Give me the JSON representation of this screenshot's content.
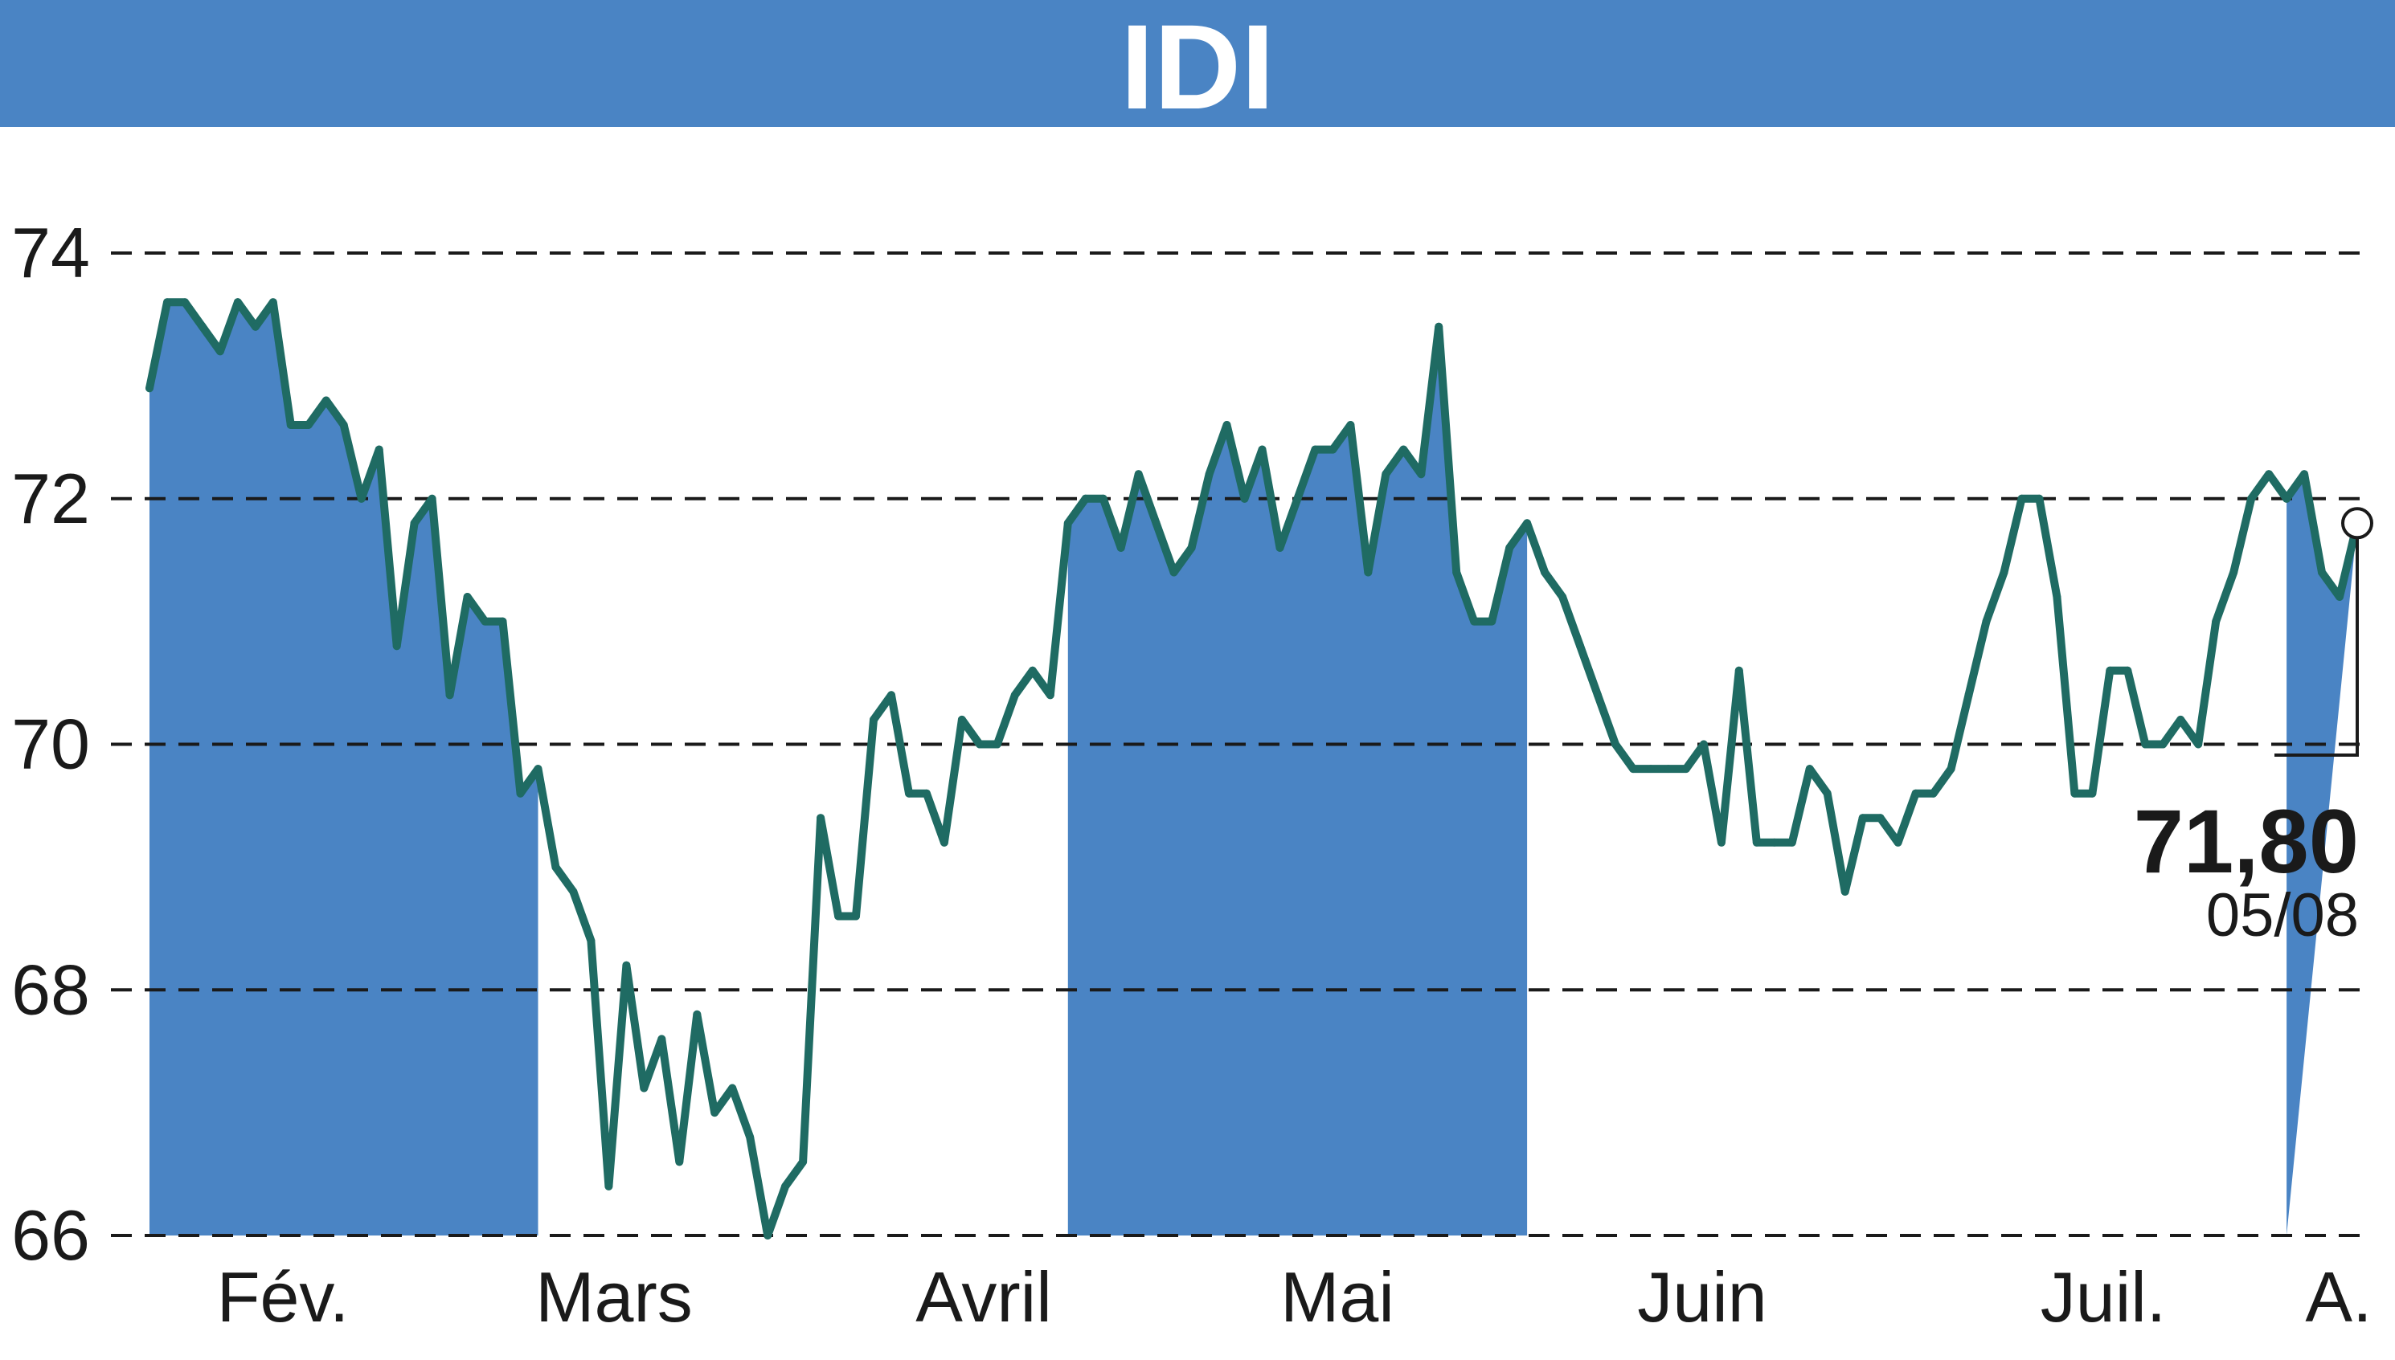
{
  "chart_data": {
    "type": "line",
    "title": "IDI",
    "xlabel": "",
    "ylabel": "",
    "ylim": [
      66,
      74
    ],
    "y_ticks": [
      66,
      68,
      70,
      72,
      74
    ],
    "y_tick_labels": [
      "66",
      "68",
      "70",
      "72",
      "74"
    ],
    "grid": "horizontal dashed",
    "month_labels": [
      "Fév.",
      "Mars",
      "Avril",
      "Mai",
      "Juin",
      "Juil.",
      "A."
    ],
    "month_shading": "alternate months shaded blue (Fév., Avril, Juin, A.)",
    "last_value": "71,80",
    "last_date": "05/08",
    "series": [
      {
        "values": [
          72.9,
          73.6,
          73.6,
          73.4,
          73.2,
          73.6,
          73.4,
          73.6,
          72.6,
          72.6,
          72.8,
          72.6,
          72.0,
          72.4,
          70.8,
          71.8,
          72.0,
          70.4,
          71.2,
          71.0,
          71.0,
          69.6,
          69.8,
          69.0,
          68.8,
          68.4,
          66.4,
          68.2,
          67.2,
          67.6,
          66.6,
          67.8,
          67.0,
          67.2,
          66.8,
          66.0,
          66.4,
          66.6,
          69.4,
          68.6,
          68.6,
          70.2,
          70.4,
          69.6,
          69.6,
          69.2,
          70.2,
          70.0,
          70.0,
          70.4,
          70.6,
          70.4,
          71.8,
          72.0,
          72.0,
          71.6,
          72.2,
          71.8,
          71.4,
          71.6,
          72.2,
          72.6,
          72.0,
          72.4,
          71.6,
          72.0,
          72.4,
          72.4,
          72.6,
          71.4,
          72.2,
          72.4,
          72.2,
          73.4,
          71.4,
          71.0,
          71.0,
          71.6,
          71.8,
          71.4,
          71.2,
          70.8,
          70.4,
          70.0,
          69.8,
          69.8,
          69.8,
          69.8,
          70.0,
          69.2,
          70.6,
          69.2,
          69.2,
          69.2,
          69.8,
          69.6,
          68.8,
          69.4,
          69.4,
          69.2,
          69.6,
          69.6,
          69.8,
          70.4,
          71.0,
          71.4,
          72.0,
          72.0,
          71.2,
          69.6,
          69.6,
          70.6,
          70.6,
          70.0,
          70.0,
          70.2,
          70.0,
          71.0,
          71.4,
          72.0,
          72.2,
          72.0,
          72.2,
          71.4,
          71.2,
          71.8
        ]
      }
    ]
  },
  "colors": {
    "banner": "#4a84c4",
    "month_fill": "#4a84c4",
    "line": "#1f6b63",
    "grid": "#1a1a1a",
    "text": "#1a1a1a"
  }
}
